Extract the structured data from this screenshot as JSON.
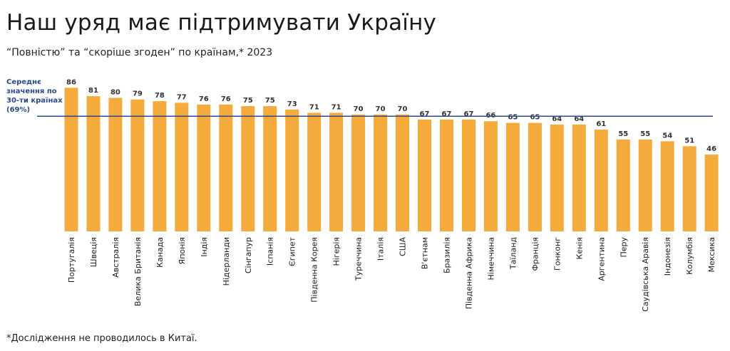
{
  "title": "Наш уряд має підтримувати Україну",
  "subtitle": "“Повністю” та “скоріше згоден” по країнам,* 2023",
  "footnote": "*Дослідження не проводилось в Китаї.",
  "colors": {
    "bar": "#f5aa3c",
    "avg_line": "#2c4a8c",
    "avg_text": "#2c4a8c"
  },
  "chart_data": {
    "type": "bar",
    "title": "Наш уряд має підтримувати Україну",
    "subtitle": "“Повністю” та “скоріше згоден” по країнам,* 2023",
    "categories": [
      "Португалія",
      "Швеція",
      "Австралія",
      "Велика Британія",
      "Канада",
      "Японія",
      "Індія",
      "Нідерланди",
      "Сінгапур",
      "Іспанія",
      "Єгипет",
      "Південна Корея",
      "Нігерія",
      "Туреччина",
      "Італія",
      "США",
      "В'єтнам",
      "Бразилія",
      "Південна Африка",
      "Німеччина",
      "Таїланд",
      "Франція",
      "Гонконг",
      "Кенія",
      "Аргентина",
      "Перу",
      "Саудівська Аравія",
      "Індонезія",
      "Колумбія",
      "Мексика"
    ],
    "values": [
      86,
      81,
      80,
      79,
      78,
      77,
      76,
      76,
      75,
      75,
      73,
      71,
      71,
      70,
      70,
      70,
      67,
      67,
      67,
      66,
      65,
      65,
      64,
      64,
      61,
      55,
      55,
      54,
      51,
      46
    ],
    "reference_line": {
      "value": 69,
      "label_lines": [
        "Середнє",
        "значення по",
        "30-ти країнах",
        "(69%)"
      ]
    },
    "ylim": [
      0,
      100
    ],
    "grid": false,
    "legend": "none"
  }
}
